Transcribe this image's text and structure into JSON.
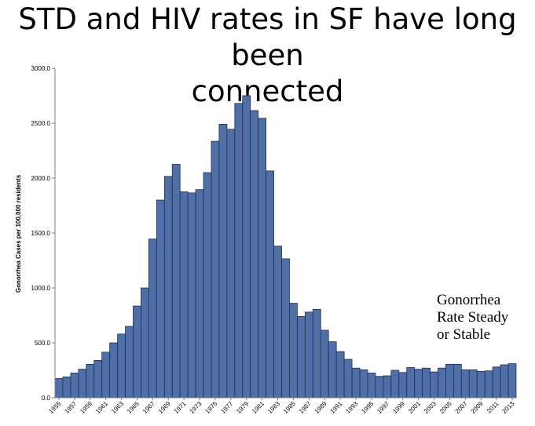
{
  "title": {
    "line1": "STD and HIV rates in SF have long been",
    "line2": "connected"
  },
  "annotation": {
    "line1": "Gonorrhea",
    "line2": "Rate Steady",
    "line3": "or Stable"
  },
  "colors": {
    "bar": "#4f6fa6",
    "bar_edge": "#1f2f52",
    "axis": "#7f7f7f"
  },
  "chart_data": {
    "type": "bar",
    "title": "",
    "xlabel": "",
    "ylabel": "Gonorrhea Cases per 100,000 residents",
    "ylim": [
      0,
      3000
    ],
    "yticks": [
      "0.0",
      "500.0",
      "1000.0",
      "1500.0",
      "2000.0",
      "2500.0",
      "3000.0"
    ],
    "categories": [
      "1955",
      "1956",
      "1957",
      "1958",
      "1959",
      "1960",
      "1961",
      "1962",
      "1963",
      "1964",
      "1965",
      "1966",
      "1967",
      "1968",
      "1969",
      "1970",
      "1971",
      "1972",
      "1973",
      "1974",
      "1975",
      "1976",
      "1977",
      "1978",
      "1979",
      "1980",
      "1981",
      "1982",
      "1983",
      "1984",
      "1985",
      "1986",
      "1987",
      "1988",
      "1989",
      "1990",
      "1991",
      "1992",
      "1993",
      "1994",
      "1995",
      "1996",
      "1997",
      "1998",
      "1999",
      "2000",
      "2001",
      "2002",
      "2003",
      "2004",
      "2005",
      "2006",
      "2007",
      "2008",
      "2009",
      "2010",
      "2011",
      "2012",
      "2013"
    ],
    "xtick_labels": [
      "1955",
      "1957",
      "1959",
      "1961",
      "1963",
      "1965",
      "1967",
      "1969",
      "1971",
      "1973",
      "1975",
      "1977",
      "1979",
      "1981",
      "1983",
      "1985",
      "1987",
      "1989",
      "1991",
      "1993",
      "1995",
      "1997",
      "1999",
      "2001",
      "2003",
      "2005",
      "2007",
      "2009",
      "2011",
      "2013"
    ],
    "values": [
      175,
      190,
      225,
      260,
      305,
      340,
      415,
      500,
      580,
      650,
      835,
      1000,
      1445,
      1800,
      2015,
      2125,
      1875,
      1865,
      1895,
      2050,
      2335,
      2490,
      2445,
      2680,
      2750,
      2615,
      2545,
      2065,
      1380,
      1265,
      860,
      740,
      780,
      805,
      615,
      510,
      420,
      350,
      270,
      255,
      225,
      195,
      200,
      250,
      230,
      275,
      260,
      270,
      235,
      270,
      305,
      305,
      255,
      255,
      240,
      245,
      280,
      300,
      310
    ]
  }
}
